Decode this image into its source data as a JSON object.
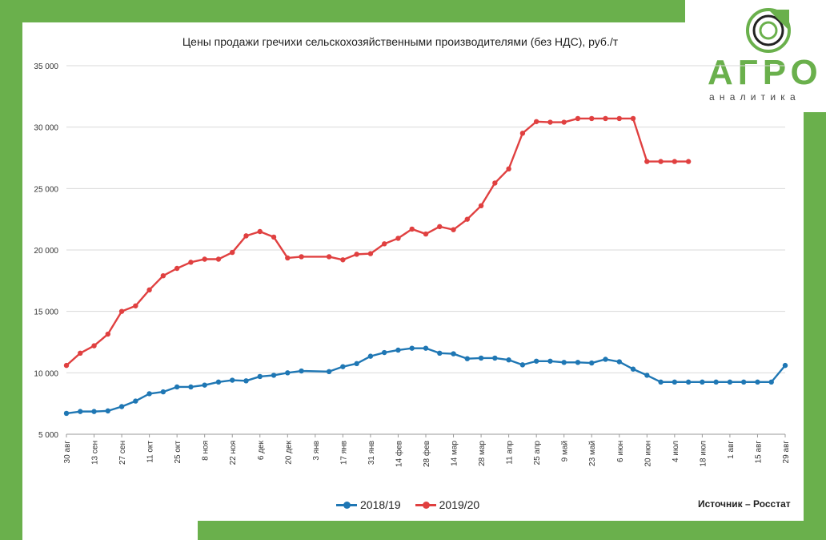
{
  "title": "Цены продажи гречихи сельскохозяйственными производителями (без НДС), руб./т",
  "logo": {
    "name": "АГРО",
    "subtitle": "аналитика"
  },
  "source": "Источник – Росстат",
  "colors": {
    "frame": "#6ab04c",
    "series_2018": "#1f77b4",
    "series_2019": "#e04040",
    "grid": "#d9d9d9"
  },
  "chart_data": {
    "type": "line",
    "ylim": [
      5000,
      35000
    ],
    "yticks": [
      5000,
      10000,
      15000,
      20000,
      25000,
      30000,
      35000
    ],
    "ytick_labels": [
      "5 000",
      "10 000",
      "15 000",
      "20 000",
      "25 000",
      "30 000",
      "35 000"
    ],
    "x_labels": [
      "30 авг",
      "13 сен",
      "27 сен",
      "11 окт",
      "25 окт",
      "8 ноя",
      "22 ноя",
      "6 дек",
      "20 дек",
      "3 янв",
      "17 янв",
      "31 янв",
      "14 фев",
      "28 фев",
      "14 мар",
      "28 мар",
      "11 апр",
      "25 апр",
      "9 май",
      "23 май",
      "6 июн",
      "20 июн",
      "4 июл",
      "18 июл",
      "1 авг",
      "15 авг",
      "29 авг"
    ],
    "grid": true,
    "legend_position": "bottom",
    "series": [
      {
        "name": "2018/19",
        "color": "#1f77b4",
        "points": [
          [
            0,
            6700
          ],
          [
            1,
            6850
          ],
          [
            2,
            6850
          ],
          [
            3,
            6900
          ],
          [
            4,
            7250
          ],
          [
            5,
            7700
          ],
          [
            6,
            8300
          ],
          [
            7,
            8450
          ],
          [
            8,
            8850
          ],
          [
            9,
            8850
          ],
          [
            10,
            9000
          ],
          [
            11,
            9250
          ],
          [
            12,
            9400
          ],
          [
            13,
            9350
          ],
          [
            14,
            9700
          ],
          [
            15,
            9800
          ],
          [
            16,
            10000
          ],
          [
            17,
            10150
          ],
          [
            19,
            10100
          ],
          [
            20,
            10500
          ],
          [
            21,
            10750
          ],
          [
            22,
            11350
          ],
          [
            23,
            11650
          ],
          [
            24,
            11850
          ],
          [
            25,
            12000
          ],
          [
            26,
            12000
          ],
          [
            27,
            11600
          ],
          [
            28,
            11550
          ],
          [
            29,
            11150
          ],
          [
            30,
            11200
          ],
          [
            31,
            11200
          ],
          [
            32,
            11050
          ],
          [
            33,
            10650
          ],
          [
            34,
            10950
          ],
          [
            35,
            10950
          ],
          [
            36,
            10850
          ],
          [
            37,
            10850
          ],
          [
            38,
            10800
          ],
          [
            39,
            11100
          ],
          [
            40,
            10900
          ],
          [
            41,
            10300
          ],
          [
            42,
            9800
          ],
          [
            43,
            9250
          ],
          [
            44,
            9250
          ],
          [
            45,
            9250
          ],
          [
            46,
            9250
          ],
          [
            47,
            9250
          ],
          [
            48,
            9250
          ],
          [
            49,
            9250
          ],
          [
            50,
            9250
          ],
          [
            51,
            9250
          ],
          [
            52,
            10600
          ]
        ]
      },
      {
        "name": "2019/20",
        "color": "#e04040",
        "points": [
          [
            0,
            10600
          ],
          [
            1,
            11600
          ],
          [
            2,
            12200
          ],
          [
            3,
            13150
          ],
          [
            4,
            15000
          ],
          [
            5,
            15450
          ],
          [
            6,
            16750
          ],
          [
            7,
            17900
          ],
          [
            8,
            18500
          ],
          [
            9,
            19000
          ],
          [
            10,
            19250
          ],
          [
            11,
            19250
          ],
          [
            12,
            19800
          ],
          [
            13,
            21150
          ],
          [
            14,
            21500
          ],
          [
            15,
            21050
          ],
          [
            16,
            19350
          ],
          [
            17,
            19450
          ],
          [
            19,
            19450
          ],
          [
            20,
            19200
          ],
          [
            21,
            19650
          ],
          [
            22,
            19700
          ],
          [
            23,
            20500
          ],
          [
            24,
            20950
          ],
          [
            25,
            21700
          ],
          [
            26,
            21300
          ],
          [
            27,
            21900
          ],
          [
            28,
            21650
          ],
          [
            29,
            22500
          ],
          [
            30,
            23600
          ],
          [
            31,
            25450
          ],
          [
            32,
            26600
          ],
          [
            33,
            29500
          ],
          [
            34,
            30450
          ],
          [
            35,
            30400
          ],
          [
            36,
            30400
          ],
          [
            37,
            30700
          ],
          [
            38,
            30700
          ],
          [
            39,
            30700
          ],
          [
            40,
            30700
          ],
          [
            41,
            30700
          ],
          [
            42,
            27200
          ],
          [
            43,
            27200
          ],
          [
            44,
            27200
          ],
          [
            45,
            27200
          ]
        ]
      }
    ]
  }
}
